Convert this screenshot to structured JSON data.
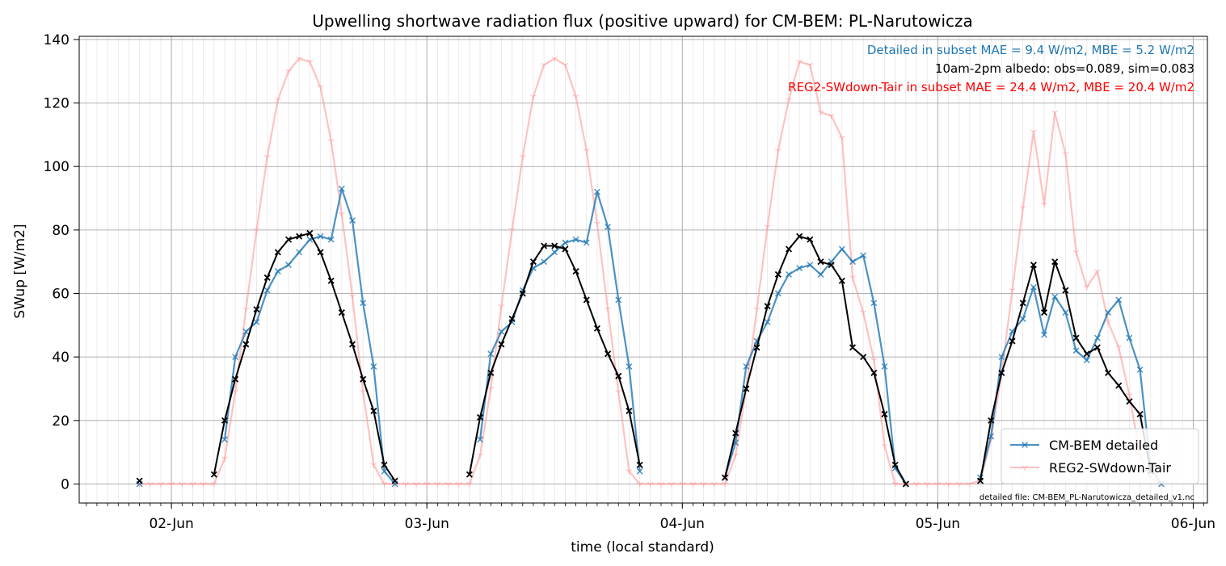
{
  "chart_data": {
    "type": "line",
    "title": "Upwelling shortwave radiation flux (positive upward) for CM-BEM: PL-Narutowicza",
    "xlabel": "time (local standard)",
    "ylabel": "SWup [W/m2]",
    "xlim": [
      "2012-06-01T15:20",
      "2012-06-06T01:20"
    ],
    "ylim": [
      -6,
      141
    ],
    "grid": true,
    "legend_position": "lower-right",
    "x_ticks": [
      {
        "value": "2012-06-02T00:00",
        "label": "02-Jun"
      },
      {
        "value": "2012-06-03T00:00",
        "label": "03-Jun"
      },
      {
        "value": "2012-06-04T00:00",
        "label": "04-Jun"
      },
      {
        "value": "2012-06-05T00:00",
        "label": "05-Jun"
      },
      {
        "value": "2012-06-06T00:00",
        "label": "06-Jun"
      }
    ],
    "y_ticks": [
      0,
      20,
      40,
      60,
      80,
      100,
      120,
      140
    ],
    "annotations": [
      {
        "text": "Detailed in subset MAE = 9.4 W/m2, MBE = 5.2 W/m2",
        "color": "#1f77b4"
      },
      {
        "text": "10am-2pm albedo: obs=0.089, sim=0.083",
        "color": "#000000"
      },
      {
        "text": "REG2-SWdown-Tair in subset MAE = 24.4 W/m2, MBE = 20.4 W/m2",
        "color": "#ff0000"
      }
    ],
    "footnote": "detailed file: CM-BEM_PL-Narutowicza_detailed_v1.nc",
    "series": [
      {
        "name": "REG2-SWdown-Tair",
        "color": "#ff9999",
        "points": [
          [
            "2012-06-01T21:00",
            0
          ],
          [
            "2012-06-01T22:00",
            0
          ],
          [
            "2012-06-01T23:00",
            0
          ],
          [
            "2012-06-02T00:00",
            0
          ],
          [
            "2012-06-02T01:00",
            0
          ],
          [
            "2012-06-02T02:00",
            0
          ],
          [
            "2012-06-02T03:00",
            0
          ],
          [
            "2012-06-02T04:00",
            0
          ],
          [
            "2012-06-02T05:00",
            8
          ],
          [
            "2012-06-02T06:00",
            29
          ],
          [
            "2012-06-02T07:00",
            55
          ],
          [
            "2012-06-02T08:00",
            80
          ],
          [
            "2012-06-02T09:00",
            103
          ],
          [
            "2012-06-02T10:00",
            121
          ],
          [
            "2012-06-02T11:00",
            130
          ],
          [
            "2012-06-02T12:00",
            134
          ],
          [
            "2012-06-02T13:00",
            133
          ],
          [
            "2012-06-02T14:00",
            125
          ],
          [
            "2012-06-02T15:00",
            108
          ],
          [
            "2012-06-02T16:00",
            85
          ],
          [
            "2012-06-02T17:00",
            59
          ],
          [
            "2012-06-02T18:00",
            29
          ],
          [
            "2012-06-02T19:00",
            6
          ],
          [
            "2012-06-02T20:00",
            0
          ],
          [
            "2012-06-02T21:00",
            0
          ],
          [
            "2012-06-02T22:00",
            0
          ],
          [
            "2012-06-02T23:00",
            0
          ],
          [
            "2012-06-03T00:00",
            0
          ],
          [
            "2012-06-03T01:00",
            0
          ],
          [
            "2012-06-03T02:00",
            0
          ],
          [
            "2012-06-03T03:00",
            0
          ],
          [
            "2012-06-03T04:00",
            0
          ],
          [
            "2012-06-03T05:00",
            9
          ],
          [
            "2012-06-03T06:00",
            30
          ],
          [
            "2012-06-03T07:00",
            56
          ],
          [
            "2012-06-03T08:00",
            80
          ],
          [
            "2012-06-03T09:00",
            103
          ],
          [
            "2012-06-03T10:00",
            122
          ],
          [
            "2012-06-03T11:00",
            132
          ],
          [
            "2012-06-03T12:00",
            134
          ],
          [
            "2012-06-03T13:00",
            132
          ],
          [
            "2012-06-03T14:00",
            122
          ],
          [
            "2012-06-03T15:00",
            105
          ],
          [
            "2012-06-03T16:00",
            82
          ],
          [
            "2012-06-03T17:00",
            55
          ],
          [
            "2012-06-03T18:00",
            29
          ],
          [
            "2012-06-03T19:00",
            4
          ],
          [
            "2012-06-03T20:00",
            0
          ],
          [
            "2012-06-03T21:00",
            0
          ],
          [
            "2012-06-03T22:00",
            0
          ],
          [
            "2012-06-03T23:00",
            0
          ],
          [
            "2012-06-04T00:00",
            0
          ],
          [
            "2012-06-04T01:00",
            0
          ],
          [
            "2012-06-04T02:00",
            0
          ],
          [
            "2012-06-04T03:00",
            0
          ],
          [
            "2012-06-04T04:00",
            0
          ],
          [
            "2012-06-04T05:00",
            9
          ],
          [
            "2012-06-04T06:00",
            30
          ],
          [
            "2012-06-04T07:00",
            55
          ],
          [
            "2012-06-04T08:00",
            81
          ],
          [
            "2012-06-04T09:00",
            105
          ],
          [
            "2012-06-04T10:00",
            121
          ],
          [
            "2012-06-04T11:00",
            133
          ],
          [
            "2012-06-04T12:00",
            132
          ],
          [
            "2012-06-04T13:00",
            117
          ],
          [
            "2012-06-04T14:00",
            116
          ],
          [
            "2012-06-04T15:00",
            109
          ],
          [
            "2012-06-04T16:00",
            65
          ],
          [
            "2012-06-04T17:00",
            54
          ],
          [
            "2012-06-04T18:00",
            39
          ],
          [
            "2012-06-04T19:00",
            12
          ],
          [
            "2012-06-04T20:00",
            0
          ],
          [
            "2012-06-04T21:00",
            0
          ],
          [
            "2012-06-04T22:00",
            0
          ],
          [
            "2012-06-04T23:00",
            0
          ],
          [
            "2012-06-05T00:00",
            0
          ],
          [
            "2012-06-05T01:00",
            0
          ],
          [
            "2012-06-05T02:00",
            0
          ],
          [
            "2012-06-05T03:00",
            0
          ],
          [
            "2012-06-05T04:00",
            1
          ],
          [
            "2012-06-05T05:00",
            14
          ],
          [
            "2012-06-05T06:00",
            35
          ],
          [
            "2012-06-05T07:00",
            61
          ],
          [
            "2012-06-05T08:00",
            87
          ],
          [
            "2012-06-05T09:00",
            111
          ],
          [
            "2012-06-05T10:00",
            88
          ],
          [
            "2012-06-05T11:00",
            117
          ],
          [
            "2012-06-05T12:00",
            104
          ],
          [
            "2012-06-05T13:00",
            73
          ],
          [
            "2012-06-05T14:00",
            62
          ],
          [
            "2012-06-05T15:00",
            67
          ],
          [
            "2012-06-05T16:00",
            51
          ],
          [
            "2012-06-05T17:00",
            43
          ],
          [
            "2012-06-05T18:00",
            28
          ],
          [
            "2012-06-05T19:00",
            9
          ],
          [
            "2012-06-05T20:00",
            2
          ],
          [
            "2012-06-05T21:00",
            0
          ]
        ]
      },
      {
        "name": "CM-BEM detailed",
        "color": "#1f77b4",
        "points": [
          [
            "2012-06-01T21:00",
            0
          ],
          [
            "2012-06-02T05:00",
            14
          ],
          [
            "2012-06-02T06:00",
            40
          ],
          [
            "2012-06-02T07:00",
            48
          ],
          [
            "2012-06-02T08:00",
            51
          ],
          [
            "2012-06-02T09:00",
            61
          ],
          [
            "2012-06-02T10:00",
            67
          ],
          [
            "2012-06-02T11:00",
            69
          ],
          [
            "2012-06-02T12:00",
            73
          ],
          [
            "2012-06-02T13:00",
            77
          ],
          [
            "2012-06-02T14:00",
            78
          ],
          [
            "2012-06-02T15:00",
            77
          ],
          [
            "2012-06-02T16:00",
            93
          ],
          [
            "2012-06-02T17:00",
            83
          ],
          [
            "2012-06-02T18:00",
            57
          ],
          [
            "2012-06-02T19:00",
            37
          ],
          [
            "2012-06-02T20:00",
            4
          ],
          [
            "2012-06-02T21:00",
            0
          ],
          [
            "2012-06-03T05:00",
            14
          ],
          [
            "2012-06-03T06:00",
            41
          ],
          [
            "2012-06-03T07:00",
            48
          ],
          [
            "2012-06-03T08:00",
            51
          ],
          [
            "2012-06-03T09:00",
            61
          ],
          [
            "2012-06-03T10:00",
            68
          ],
          [
            "2012-06-03T11:00",
            70
          ],
          [
            "2012-06-03T12:00",
            73
          ],
          [
            "2012-06-03T13:00",
            76
          ],
          [
            "2012-06-03T14:00",
            77
          ],
          [
            "2012-06-03T15:00",
            76
          ],
          [
            "2012-06-03T16:00",
            92
          ],
          [
            "2012-06-03T17:00",
            81
          ],
          [
            "2012-06-03T18:00",
            58
          ],
          [
            "2012-06-03T19:00",
            37
          ],
          [
            "2012-06-03T20:00",
            4
          ],
          [
            "2012-06-04T04:00",
            2
          ],
          [
            "2012-06-04T05:00",
            13
          ],
          [
            "2012-06-04T06:00",
            37
          ],
          [
            "2012-06-04T07:00",
            45
          ],
          [
            "2012-06-04T08:00",
            51
          ],
          [
            "2012-06-04T09:00",
            60
          ],
          [
            "2012-06-04T10:00",
            66
          ],
          [
            "2012-06-04T11:00",
            68
          ],
          [
            "2012-06-04T12:00",
            69
          ],
          [
            "2012-06-04T13:00",
            66
          ],
          [
            "2012-06-04T14:00",
            70
          ],
          [
            "2012-06-04T15:00",
            74
          ],
          [
            "2012-06-04T16:00",
            70
          ],
          [
            "2012-06-04T17:00",
            72
          ],
          [
            "2012-06-04T18:00",
            57
          ],
          [
            "2012-06-04T19:00",
            37
          ],
          [
            "2012-06-04T20:00",
            5
          ],
          [
            "2012-06-04T21:00",
            0
          ],
          [
            "2012-06-05T04:00",
            2
          ],
          [
            "2012-06-05T05:00",
            15
          ],
          [
            "2012-06-05T06:00",
            40
          ],
          [
            "2012-06-05T07:00",
            48
          ],
          [
            "2012-06-05T08:00",
            52
          ],
          [
            "2012-06-05T09:00",
            62
          ],
          [
            "2012-06-05T10:00",
            47
          ],
          [
            "2012-06-05T11:00",
            59
          ],
          [
            "2012-06-05T12:00",
            54
          ],
          [
            "2012-06-05T13:00",
            42
          ],
          [
            "2012-06-05T14:00",
            39
          ],
          [
            "2012-06-05T15:00",
            46
          ],
          [
            "2012-06-05T16:00",
            54
          ],
          [
            "2012-06-05T17:00",
            58
          ],
          [
            "2012-06-05T18:00",
            46
          ],
          [
            "2012-06-05T19:00",
            36
          ],
          [
            "2012-06-05T20:00",
            5
          ],
          [
            "2012-06-05T21:00",
            0
          ]
        ]
      },
      {
        "name": "",
        "color": "#000000",
        "points": [
          [
            "2012-06-01T21:00",
            1
          ],
          [
            "2012-06-02T04:00",
            3
          ],
          [
            "2012-06-02T05:00",
            20
          ],
          [
            "2012-06-02T06:00",
            33
          ],
          [
            "2012-06-02T07:00",
            44
          ],
          [
            "2012-06-02T08:00",
            55
          ],
          [
            "2012-06-02T09:00",
            65
          ],
          [
            "2012-06-02T10:00",
            73
          ],
          [
            "2012-06-02T11:00",
            77
          ],
          [
            "2012-06-02T12:00",
            78
          ],
          [
            "2012-06-02T13:00",
            79
          ],
          [
            "2012-06-02T14:00",
            73
          ],
          [
            "2012-06-02T15:00",
            64
          ],
          [
            "2012-06-02T16:00",
            54
          ],
          [
            "2012-06-02T17:00",
            44
          ],
          [
            "2012-06-02T18:00",
            33
          ],
          [
            "2012-06-02T19:00",
            23
          ],
          [
            "2012-06-02T20:00",
            6
          ],
          [
            "2012-06-02T21:00",
            1
          ],
          [
            "2012-06-03T04:00",
            3
          ],
          [
            "2012-06-03T05:00",
            21
          ],
          [
            "2012-06-03T06:00",
            35
          ],
          [
            "2012-06-03T07:00",
            44
          ],
          [
            "2012-06-03T08:00",
            52
          ],
          [
            "2012-06-03T09:00",
            60
          ],
          [
            "2012-06-03T10:00",
            70
          ],
          [
            "2012-06-03T11:00",
            75
          ],
          [
            "2012-06-03T12:00",
            75
          ],
          [
            "2012-06-03T13:00",
            74
          ],
          [
            "2012-06-03T14:00",
            67
          ],
          [
            "2012-06-03T15:00",
            58
          ],
          [
            "2012-06-03T16:00",
            49
          ],
          [
            "2012-06-03T17:00",
            41
          ],
          [
            "2012-06-03T18:00",
            34
          ],
          [
            "2012-06-03T19:00",
            23
          ],
          [
            "2012-06-03T20:00",
            6
          ],
          [
            "2012-06-04T04:00",
            2
          ],
          [
            "2012-06-04T05:00",
            16
          ],
          [
            "2012-06-04T06:00",
            30
          ],
          [
            "2012-06-04T07:00",
            43
          ],
          [
            "2012-06-04T08:00",
            56
          ],
          [
            "2012-06-04T09:00",
            66
          ],
          [
            "2012-06-04T10:00",
            74
          ],
          [
            "2012-06-04T11:00",
            78
          ],
          [
            "2012-06-04T12:00",
            77
          ],
          [
            "2012-06-04T13:00",
            70
          ],
          [
            "2012-06-04T14:00",
            69
          ],
          [
            "2012-06-04T15:00",
            64
          ],
          [
            "2012-06-04T16:00",
            43
          ],
          [
            "2012-06-04T17:00",
            40
          ],
          [
            "2012-06-04T18:00",
            35
          ],
          [
            "2012-06-04T19:00",
            22
          ],
          [
            "2012-06-04T20:00",
            6
          ],
          [
            "2012-06-04T21:00",
            0
          ],
          [
            "2012-06-05T04:00",
            1
          ],
          [
            "2012-06-05T05:00",
            20
          ],
          [
            "2012-06-05T06:00",
            35
          ],
          [
            "2012-06-05T07:00",
            45
          ],
          [
            "2012-06-05T08:00",
            57
          ],
          [
            "2012-06-05T09:00",
            69
          ],
          [
            "2012-06-05T10:00",
            54
          ],
          [
            "2012-06-05T11:00",
            70
          ],
          [
            "2012-06-05T12:00",
            61
          ],
          [
            "2012-06-05T13:00",
            46
          ],
          [
            "2012-06-05T14:00",
            41
          ],
          [
            "2012-06-05T15:00",
            43
          ],
          [
            "2012-06-05T16:00",
            35
          ],
          [
            "2012-06-05T17:00",
            31
          ],
          [
            "2012-06-05T18:00",
            26
          ],
          [
            "2012-06-05T19:00",
            22
          ],
          [
            "2012-06-05T20:00",
            4
          ]
        ]
      }
    ]
  }
}
